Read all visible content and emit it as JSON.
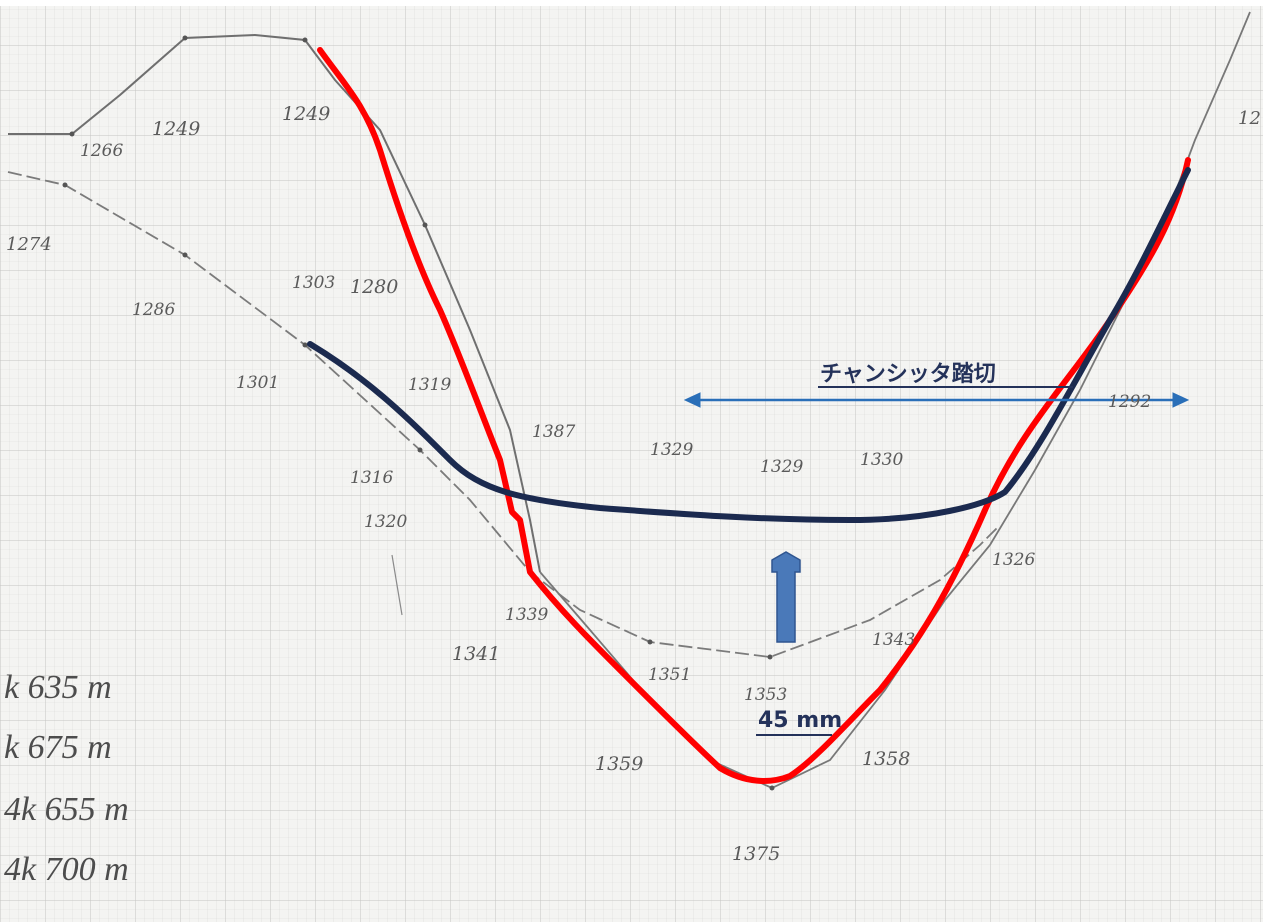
{
  "point_labels": [
    "1266",
    "1249",
    "1249",
    "1274",
    "1286",
    "1303",
    "1280",
    "1301",
    "1319",
    "1316",
    "1320",
    "1387",
    "1329",
    "1329",
    "1330",
    "1339",
    "1341",
    "1351",
    "1353",
    "1343",
    "1359",
    "1358",
    "1375",
    "1326",
    "1292",
    "12"
  ],
  "notes": [
    "k 635 m",
    "k 675 m",
    "4k 655 m",
    "4k 700 m"
  ],
  "crossing_label": "チャンシッタ踏切",
  "depth_label": "45 mm",
  "colors": {
    "red_line": "#ff0000",
    "navy_line": "#1b2a4f",
    "span_arrow": "#2a6fb8",
    "up_arrow": "#4a79b9",
    "pencil": "#7a7a7a"
  }
}
